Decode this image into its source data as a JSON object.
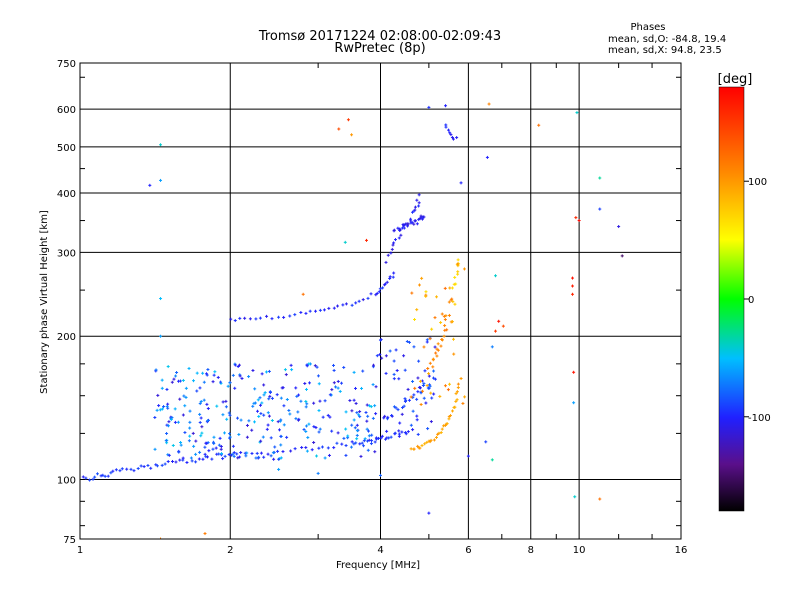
{
  "chart_data": {
    "type": "scatter",
    "title": "Tromsø 20171224 02:08:00-02:09:43",
    "subtitle": "RwPretec (8p)",
    "xlabel": "Frequency [MHz]",
    "ylabel": "Stationary phase Virtual Height [km]",
    "x_scale": "log",
    "y_scale": "log",
    "xlim": [
      1,
      16
    ],
    "ylim": [
      75,
      750
    ],
    "x_ticks": [
      1,
      2,
      4,
      6,
      8,
      10,
      16
    ],
    "x_tick_labels": [
      "1",
      "2",
      "4",
      "6",
      "8",
      "10",
      "16"
    ],
    "y_ticks": [
      75,
      100,
      200,
      300,
      400,
      500,
      600,
      750
    ],
    "y_tick_labels": [
      "75",
      "100",
      "200",
      "300",
      "400",
      "500",
      "600",
      "750"
    ],
    "grid": true,
    "stats": {
      "header": "Phases",
      "line_o": "mean, sd,O: -84.8, 19.4",
      "line_x": "mean, sd,X:  94.8, 23.5"
    },
    "colorbar": {
      "unit_label": "[deg]",
      "range": [
        -180,
        180
      ],
      "ticks": [
        100,
        0,
        -100
      ],
      "tick_labels": [
        "100",
        "0",
        "-100"
      ]
    },
    "traces": [
      {
        "x": [
          1.0,
          1.1,
          1.2,
          1.35,
          1.5,
          1.7,
          1.9,
          2.1,
          2.5,
          3.0,
          3.5,
          3.8,
          4.0,
          4.3,
          4.6
        ],
        "y": [
          100,
          102,
          104,
          106,
          108,
          110,
          112,
          113,
          115,
          117,
          119,
          120,
          122,
          124,
          127
        ],
        "phase": -95,
        "jitter": 0.012,
        "per_segment": 7
      },
      {
        "x": [
          2.0,
          2.3,
          2.7,
          3.1,
          3.5,
          3.9,
          4.1,
          4.3
        ],
        "y": [
          216,
          218,
          222,
          227,
          234,
          246,
          258,
          272
        ],
        "phase": -100,
        "jitter": 0.008,
        "per_segment": 6
      },
      {
        "x": [
          4.1,
          4.3,
          4.5,
          4.7,
          4.8
        ],
        "y": [
          290,
          320,
          345,
          370,
          395
        ],
        "phase": -105,
        "jitter": 0.015,
        "per_segment": 6
      },
      {
        "x": [
          4.25,
          4.45,
          4.65,
          4.8,
          4.9
        ],
        "y": [
          335,
          340,
          345,
          352,
          362
        ],
        "phase": -105,
        "jitter": 0.012,
        "per_segment": 6
      },
      {
        "x": [
          4.6,
          4.9,
          5.2,
          5.45,
          5.65,
          5.8
        ],
        "y": [
          115,
          118,
          124,
          132,
          145,
          165
        ],
        "phase": 95,
        "jitter": 0.01,
        "per_segment": 7
      },
      {
        "x": [
          5.0,
          5.2,
          5.35,
          5.45,
          5.6
        ],
        "y": [
          170,
          185,
          200,
          220,
          250
        ],
        "phase": 110,
        "jitter": 0.02,
        "per_segment": 5
      },
      {
        "x": [
          5.6,
          5.7,
          5.75
        ],
        "y": [
          255,
          275,
          295
        ],
        "phase": 70,
        "jitter": 0.015,
        "per_segment": 4
      },
      {
        "x": [
          4.3,
          4.5,
          4.7,
          4.9,
          5.1
        ],
        "y": [
          140,
          145,
          150,
          156,
          162
        ],
        "phase": -90,
        "jitter": 0.02,
        "per_segment": 5
      },
      {
        "x": [
          5.4,
          5.55,
          5.7
        ],
        "y": [
          560,
          530,
          515
        ],
        "phase": -100,
        "jitter": 0.01,
        "per_segment": 4
      }
    ],
    "clusters": [
      {
        "x_range": [
          1.4,
          3.9
        ],
        "y_range": [
          110,
          175
        ],
        "count": 320,
        "phase": -80,
        "phase_spread": 35
      },
      {
        "x_range": [
          3.9,
          5.2
        ],
        "y_range": [
          120,
          200
        ],
        "count": 60,
        "phase": -95,
        "phase_spread": 20
      },
      {
        "x_range": [
          4.6,
          5.9
        ],
        "y_range": [
          140,
          300
        ],
        "count": 45,
        "phase": 95,
        "phase_spread": 30
      }
    ],
    "points": [
      {
        "x": 1.45,
        "y": 505,
        "phase": -40
      },
      {
        "x": 1.45,
        "y": 425,
        "phase": -60
      },
      {
        "x": 1.38,
        "y": 415,
        "phase": -100
      },
      {
        "x": 1.45,
        "y": 240,
        "phase": -50
      },
      {
        "x": 1.45,
        "y": 200,
        "phase": -60
      },
      {
        "x": 1.45,
        "y": 75,
        "phase": 110
      },
      {
        "x": 1.78,
        "y": 77,
        "phase": 115
      },
      {
        "x": 2.8,
        "y": 245,
        "phase": 120
      },
      {
        "x": 3.3,
        "y": 545,
        "phase": 140
      },
      {
        "x": 3.45,
        "y": 570,
        "phase": 150
      },
      {
        "x": 3.5,
        "y": 530,
        "phase": 100
      },
      {
        "x": 3.4,
        "y": 315,
        "phase": -40
      },
      {
        "x": 3.75,
        "y": 318,
        "phase": 160
      },
      {
        "x": 5.0,
        "y": 605,
        "phase": -95
      },
      {
        "x": 5.4,
        "y": 610,
        "phase": -100
      },
      {
        "x": 5.8,
        "y": 420,
        "phase": -100
      },
      {
        "x": 6.55,
        "y": 475,
        "phase": -100
      },
      {
        "x": 6.6,
        "y": 615,
        "phase": 110
      },
      {
        "x": 8.3,
        "y": 555,
        "phase": 120
      },
      {
        "x": 9.9,
        "y": 590,
        "phase": -40
      },
      {
        "x": 11.0,
        "y": 430,
        "phase": -30
      },
      {
        "x": 11.0,
        "y": 370,
        "phase": -90
      },
      {
        "x": 10.0,
        "y": 350,
        "phase": 175
      },
      {
        "x": 9.85,
        "y": 355,
        "phase": 160
      },
      {
        "x": 12.0,
        "y": 340,
        "phase": -110
      },
      {
        "x": 12.2,
        "y": 295,
        "phase": -150
      },
      {
        "x": 9.7,
        "y": 265,
        "phase": 170
      },
      {
        "x": 9.7,
        "y": 255,
        "phase": 165
      },
      {
        "x": 9.7,
        "y": 245,
        "phase": 160
      },
      {
        "x": 6.8,
        "y": 268,
        "phase": -40
      },
      {
        "x": 6.7,
        "y": 190,
        "phase": -70
      },
      {
        "x": 6.8,
        "y": 205,
        "phase": 150
      },
      {
        "x": 6.9,
        "y": 215,
        "phase": 170
      },
      {
        "x": 7.05,
        "y": 210,
        "phase": 140
      },
      {
        "x": 6.5,
        "y": 120,
        "phase": -90
      },
      {
        "x": 6.7,
        "y": 110,
        "phase": -30
      },
      {
        "x": 6.0,
        "y": 112,
        "phase": -100
      },
      {
        "x": 9.75,
        "y": 168,
        "phase": 170
      },
      {
        "x": 9.75,
        "y": 145,
        "phase": -60
      },
      {
        "x": 9.8,
        "y": 92,
        "phase": -40
      },
      {
        "x": 11.0,
        "y": 91,
        "phase": 120
      },
      {
        "x": 5.0,
        "y": 85,
        "phase": -100
      },
      {
        "x": 4.0,
        "y": 102,
        "phase": -80
      },
      {
        "x": 3.0,
        "y": 103,
        "phase": -70
      },
      {
        "x": 2.5,
        "y": 105,
        "phase": -60
      }
    ]
  }
}
